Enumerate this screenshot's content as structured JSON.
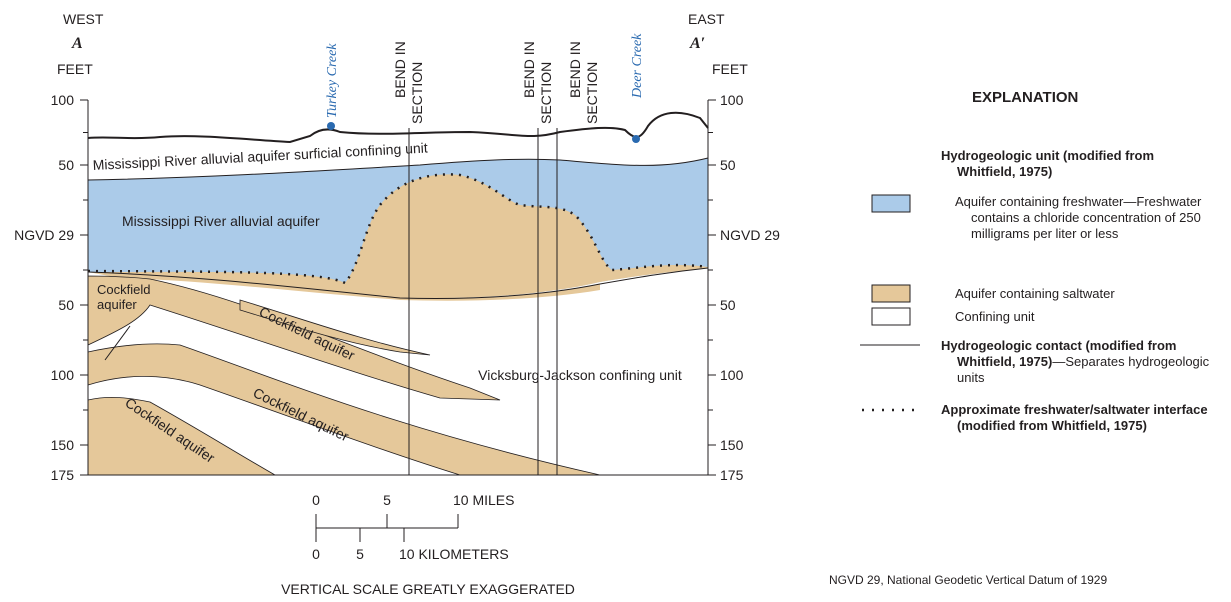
{
  "header": {
    "west": "WEST",
    "east": "EAST",
    "section_start": "A",
    "section_end": "A′",
    "left_axis_label": "FEET",
    "right_axis_label": "FEET"
  },
  "axis": {
    "left_ticks": [
      "100",
      "50",
      "NGVD 29",
      "50",
      "100",
      "150",
      "175"
    ],
    "right_ticks": [
      "100",
      "50",
      "NGVD 29",
      "50",
      "100",
      "150",
      "175"
    ]
  },
  "features": {
    "creeks": [
      "Turkey Creek",
      "Deer Creek"
    ],
    "bends": [
      [
        "BEND IN",
        "SECTION"
      ],
      [
        "BEND IN",
        "SECTION"
      ],
      [
        "BEND IN",
        "SECTION"
      ]
    ]
  },
  "units": {
    "surficial": "Mississippi River alluvial aquifer surficial confining unit",
    "alluvial": "Mississippi River alluvial aquifer",
    "cockfield_left": [
      "Cockfield",
      "aquifer"
    ],
    "cockfield_bands": [
      "Cockfield aquifer",
      "Cockfield aquifer",
      "Cockfield aquifer"
    ],
    "vicksburg": "Vicksburg-Jackson confining unit"
  },
  "scale": {
    "miles": [
      "0",
      "5",
      "10 MILES"
    ],
    "kilometers": [
      "0",
      "5",
      "10 KILOMETERS"
    ],
    "note": "VERTICAL SCALE GREATLY EXAGGERATED"
  },
  "explanation": {
    "title": "EXPLANATION",
    "unit_heading": "Hydrogeologic unit (modified from Whitfield, 1975)",
    "freshwater": "Aquifer containing freshwater—Freshwater contains a chloride concentration of 250 milligrams per liter or less",
    "saltwater": "Aquifer containing saltwater",
    "confining": "Confining unit",
    "contact_bold": "Hydrogeologic contact (modified from Whitfield, 1975)",
    "contact_text": "—Separates hydrogeologic units",
    "interface": "Approximate freshwater/saltwater interface (modified from Whitfield, 1975)",
    "ngvd_note": "NGVD 29, National Geodetic Vertical Datum of 1929"
  }
}
